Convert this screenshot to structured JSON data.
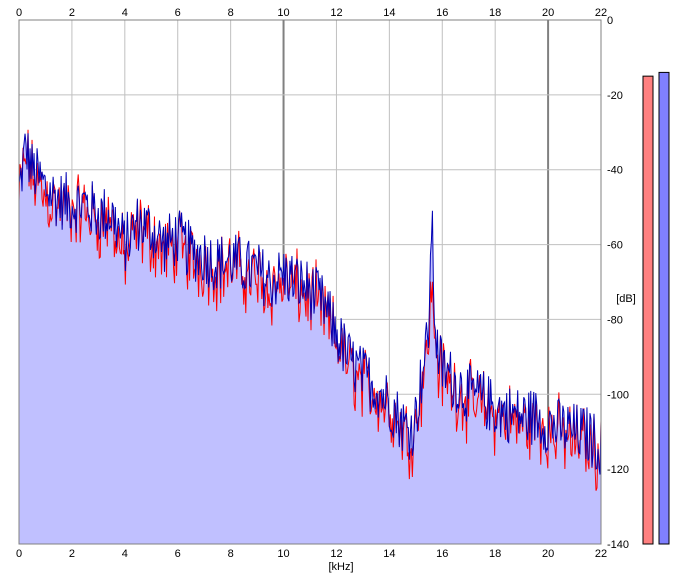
{
  "chart_data": {
    "type": "area",
    "title": "",
    "xlabel": "[kHz]",
    "ylabel": "[dB]",
    "xlim": [
      0,
      22
    ],
    "ylim": [
      -140,
      0
    ],
    "x_ticks": [
      0,
      2,
      4,
      6,
      8,
      10,
      12,
      14,
      16,
      18,
      20,
      22
    ],
    "y_ticks": [
      0,
      -20,
      -40,
      -60,
      -80,
      -100,
      -120,
      -140
    ],
    "grid": true,
    "legend": "none",
    "series": [
      {
        "color": "#ff0000",
        "x": [
          0.0,
          0.25,
          0.5,
          1.0,
          1.5,
          2.0,
          2.5,
          3.0,
          3.5,
          4.0,
          4.5,
          5.0,
          5.5,
          6.0,
          6.5,
          7.0,
          7.5,
          8.0,
          8.5,
          9.0,
          9.5,
          10.0,
          10.5,
          11.0,
          11.5,
          12.0,
          12.5,
          13.0,
          13.5,
          14.0,
          14.5,
          14.8,
          15.0,
          15.2,
          15.4,
          15.5,
          15.6,
          15.7,
          15.8,
          16.0,
          16.5,
          17.0,
          17.5,
          18.0,
          18.5,
          19.0,
          19.5,
          20.0,
          20.5,
          21.0,
          21.5,
          22.0
        ],
        "values": [
          -48,
          -36,
          -42,
          -47,
          -50,
          -51,
          -51,
          -54,
          -54,
          -64,
          -56,
          -58,
          -62,
          -60,
          -64,
          -65,
          -67,
          -66,
          -68,
          -69,
          -72,
          -70,
          -72,
          -74,
          -78,
          -86,
          -93,
          -97,
          -100,
          -104,
          -110,
          -112,
          -108,
          -98,
          -90,
          -82,
          -72,
          -82,
          -90,
          -95,
          -99,
          -102,
          -103,
          -106,
          -107,
          -108,
          -108,
          -110,
          -111,
          -112,
          -113,
          -116
        ]
      },
      {
        "color": "#0000b4",
        "x": [
          0.0,
          0.25,
          0.5,
          1.0,
          1.5,
          2.0,
          2.5,
          3.0,
          3.5,
          4.0,
          4.5,
          5.0,
          5.5,
          6.0,
          6.5,
          7.0,
          7.5,
          8.0,
          8.5,
          9.0,
          9.5,
          10.0,
          10.5,
          11.0,
          11.5,
          12.0,
          12.5,
          13.0,
          13.5,
          14.0,
          14.5,
          14.8,
          15.0,
          15.2,
          15.4,
          15.5,
          15.6,
          15.7,
          15.8,
          16.0,
          16.5,
          17.0,
          17.5,
          18.0,
          18.5,
          19.0,
          19.5,
          20.0,
          20.5,
          21.0,
          21.5,
          22.0
        ],
        "values": [
          -46,
          -34,
          -40,
          -45,
          -48,
          -49,
          -49,
          -52,
          -52,
          -60,
          -54,
          -56,
          -60,
          -58,
          -62,
          -63,
          -65,
          -64,
          -66,
          -67,
          -70,
          -68,
          -70,
          -72,
          -76,
          -84,
          -91,
          -95,
          -98,
          -102,
          -108,
          -110,
          -106,
          -96,
          -88,
          -80,
          -52,
          -76,
          -88,
          -93,
          -97,
          -100,
          -101,
          -104,
          -105,
          -106,
          -106,
          -108,
          -109,
          -110,
          -111,
          -114
        ]
      }
    ],
    "level_meters": [
      {
        "color": "#ff8080",
        "level_db": -15
      },
      {
        "color": "#8080ff",
        "level_db": -14
      }
    ]
  }
}
